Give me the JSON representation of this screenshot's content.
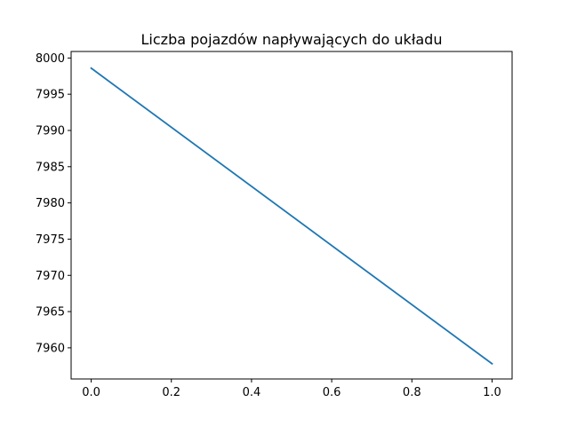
{
  "chart_data": {
    "type": "line",
    "title": "Liczba pojazdów napływających do układu",
    "xlabel": "",
    "ylabel": "",
    "xlim": [
      -0.05,
      1.05
    ],
    "ylim": [
      7955.7,
      8000.9
    ],
    "x_ticks": [
      0.0,
      0.2,
      0.4,
      0.6,
      0.8,
      1.0
    ],
    "x_tick_labels": [
      "0.0",
      "0.2",
      "0.4",
      "0.6",
      "0.8",
      "1.0"
    ],
    "y_ticks": [
      7960,
      7965,
      7970,
      7975,
      7980,
      7985,
      7990,
      7995,
      8000
    ],
    "y_tick_labels": [
      "7960",
      "7965",
      "7970",
      "7975",
      "7980",
      "7985",
      "7990",
      "7995",
      "8000"
    ],
    "grid": false,
    "legend": "none",
    "series": [
      {
        "x": [
          0.0,
          1.0
        ],
        "y": [
          7998.6,
          7957.8
        ],
        "color": "#1f77b4"
      }
    ]
  }
}
